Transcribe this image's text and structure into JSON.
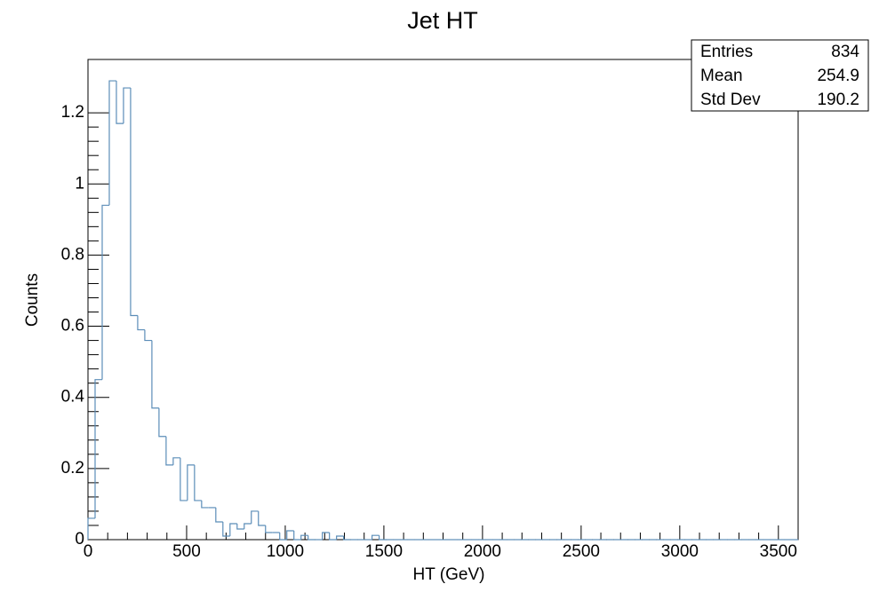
{
  "chart_data": {
    "type": "histogram",
    "title": "Jet HT",
    "x_label": "HT (GeV)",
    "y_label": "Counts",
    "bins": [
      0,
      36,
      72,
      108,
      144,
      180,
      216,
      252,
      288,
      324,
      360,
      396,
      432,
      468,
      504,
      540,
      576,
      612,
      648,
      684,
      720,
      756,
      792,
      828,
      864,
      900,
      936,
      972,
      1008,
      1044,
      1080,
      1116,
      1152,
      1188,
      1224,
      1260,
      1296,
      1332,
      1368,
      1404,
      1440,
      1476,
      1512,
      1548,
      1584,
      1620,
      1656,
      1692,
      1728,
      1764,
      1800,
      1836,
      1872,
      1908,
      1944,
      1980,
      2016,
      2052,
      2088,
      2124,
      2160,
      2196,
      2232,
      2268,
      2304,
      2340,
      2376,
      2412,
      2448,
      2484,
      2520,
      2556,
      2592,
      2628,
      2664,
      2700,
      2736,
      2772,
      2808,
      2844,
      2880,
      2916,
      2952,
      2988,
      3024,
      3060,
      3096,
      3132,
      3168,
      3204,
      3240,
      3276,
      3312,
      3348,
      3384,
      3420,
      3456,
      3492,
      3528,
      3564,
      3600
    ],
    "values": [
      0.06,
      0.45,
      0.94,
      1.29,
      1.17,
      1.27,
      0.63,
      0.59,
      0.56,
      0.37,
      0.29,
      0.21,
      0.23,
      0.11,
      0.21,
      0.11,
      0.09,
      0.09,
      0.05,
      0.01,
      0.045,
      0.03,
      0.045,
      0.08,
      0.04,
      0.02,
      0.02,
      0,
      0.025,
      0,
      0.012,
      0,
      0,
      0.02,
      0,
      0.01,
      0,
      0,
      0,
      0,
      0.012,
      0,
      0,
      0,
      0,
      0,
      0,
      0,
      0,
      0,
      0,
      0,
      0,
      0,
      0,
      0,
      0,
      0,
      0,
      0,
      0,
      0,
      0,
      0,
      0,
      0,
      0,
      0,
      0,
      0,
      0,
      0,
      0,
      0,
      0,
      0,
      0,
      0,
      0,
      0,
      0,
      0,
      0,
      0,
      0,
      0,
      0,
      0,
      0,
      0,
      0,
      0,
      0,
      0,
      0,
      0,
      0,
      0,
      0,
      0
    ],
    "color": "#5b8db8",
    "xlim": [
      0,
      3600
    ],
    "xticks": [
      0,
      500,
      1000,
      1500,
      2000,
      2500,
      3000,
      3500
    ],
    "ylim": [
      0,
      1.35
    ],
    "yticks": [
      0,
      0.2,
      0.4,
      0.6,
      0.8,
      1,
      1.2
    ],
    "stats": [
      {
        "label": "Entries",
        "value": 834
      },
      {
        "label": "Mean",
        "value": 254.9
      },
      {
        "label": "Std Dev",
        "value": 190.2
      }
    ]
  }
}
